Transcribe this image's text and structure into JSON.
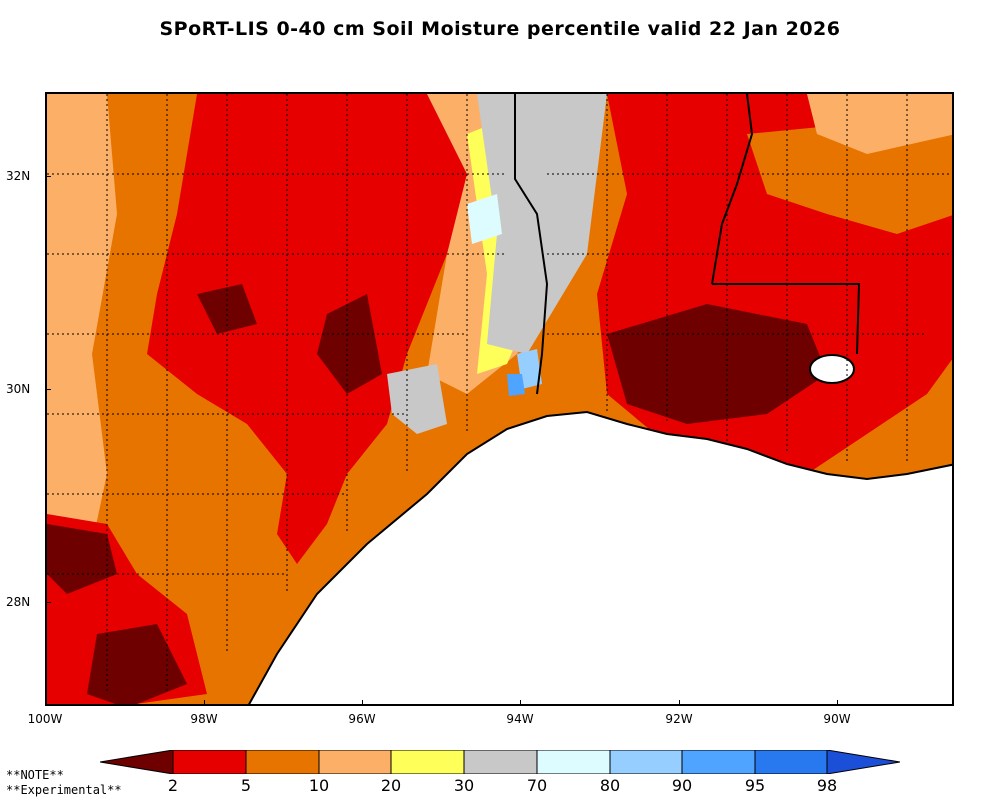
{
  "title": "SPoRT-LIS 0-40 cm Soil Moisture percentile valid 22 Jan 2026",
  "axes": {
    "y_ticks": [
      {
        "label": "32N",
        "lat": 32
      },
      {
        "label": "30N",
        "lat": 30
      },
      {
        "label": "28N",
        "lat": 28
      }
    ],
    "x_ticks": [
      {
        "label": "100W",
        "lon": -100
      },
      {
        "label": "98W",
        "lon": -98
      },
      {
        "label": "96W",
        "lon": -96
      },
      {
        "label": "94W",
        "lon": -94
      },
      {
        "label": "92W",
        "lon": -92
      },
      {
        "label": "90W",
        "lon": -90
      }
    ]
  },
  "legend": {
    "labels": [
      "2",
      "5",
      "10",
      "20",
      "30",
      "70",
      "80",
      "90",
      "95",
      "98"
    ],
    "colors": {
      "below_2": "#6e0000",
      "2_5": "#e60000",
      "5_10": "#e87400",
      "10_20": "#fcb067",
      "20_30": "#ffff59",
      "30_70": "#c8c8c8",
      "70_80": "#ddfcff",
      "80_90": "#96ceff",
      "90_95": "#4ea4ff",
      "95_98": "#2878f0",
      "above_98": "#1b4fd8"
    }
  },
  "notes": {
    "line1": "**NOTE**",
    "line2": "**Experimental**"
  }
}
